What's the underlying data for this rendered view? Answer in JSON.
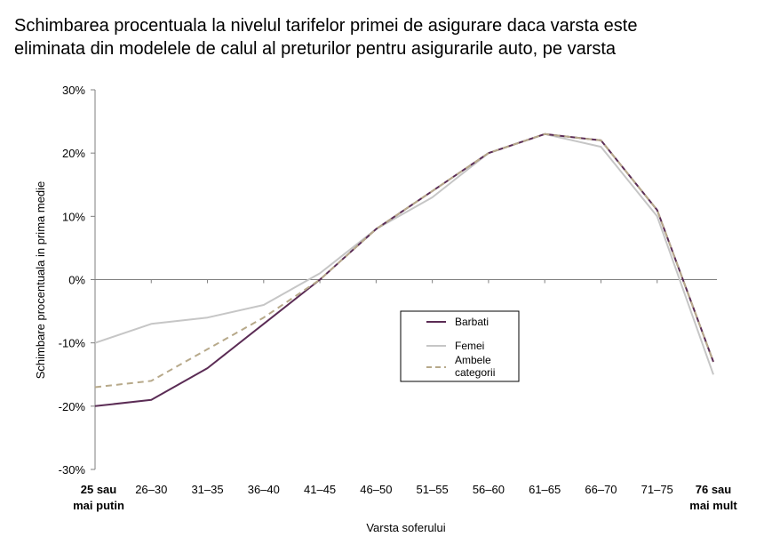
{
  "title_line1": "Schimbarea procentuala la nivelul tarifelor primei de asigurare daca varsta este",
  "title_line2": "eliminata din modelele de calul al preturilor pentru asigurarile auto, pe varsta",
  "colors": {
    "barbati": "#5b2c55",
    "femei": "#c6c6c6",
    "ambele": "#b7a98a",
    "axis": "#7f7f7f"
  },
  "chart_data": {
    "type": "line",
    "xlabel": "Varsta soferului",
    "ylabel": "Schimbare procentuala in prima medie",
    "ylim": [
      -30,
      30
    ],
    "yticks": [
      30,
      20,
      10,
      0,
      -10,
      -20,
      -30
    ],
    "ytick_labels": [
      "30%",
      "20%",
      "10%",
      "0%",
      "-10%",
      "-20%",
      "-30%"
    ],
    "grid": false,
    "legend_position": "center",
    "categories": [
      [
        "25 sau",
        "mai putin"
      ],
      [
        "26–30"
      ],
      [
        "31–35"
      ],
      [
        "36–40"
      ],
      [
        "41–45"
      ],
      [
        "46–50"
      ],
      [
        "51–55"
      ],
      [
        "56–60"
      ],
      [
        "61–65"
      ],
      [
        "66–70"
      ],
      [
        "71–75"
      ],
      [
        "76 sau",
        "mai mult"
      ]
    ],
    "bold_categories": [
      0,
      11
    ],
    "series": [
      {
        "name": "Barbati",
        "color_key": "barbati",
        "dash": false,
        "values": [
          -20,
          -19,
          -14,
          -7,
          0,
          8,
          14,
          20,
          23,
          22,
          11,
          -13
        ]
      },
      {
        "name": "Femei",
        "color_key": "femei",
        "dash": false,
        "values": [
          -10,
          -7,
          -6,
          -4,
          1,
          8,
          13,
          20,
          23,
          21,
          10,
          -15
        ]
      },
      {
        "name": "Ambele categorii",
        "legend_lines": [
          "Ambele",
          "categorii"
        ],
        "color_key": "ambele",
        "dash": true,
        "values": [
          -17,
          -16,
          -11,
          -6,
          0,
          8,
          14,
          20,
          23,
          22,
          11,
          -13
        ]
      }
    ]
  }
}
